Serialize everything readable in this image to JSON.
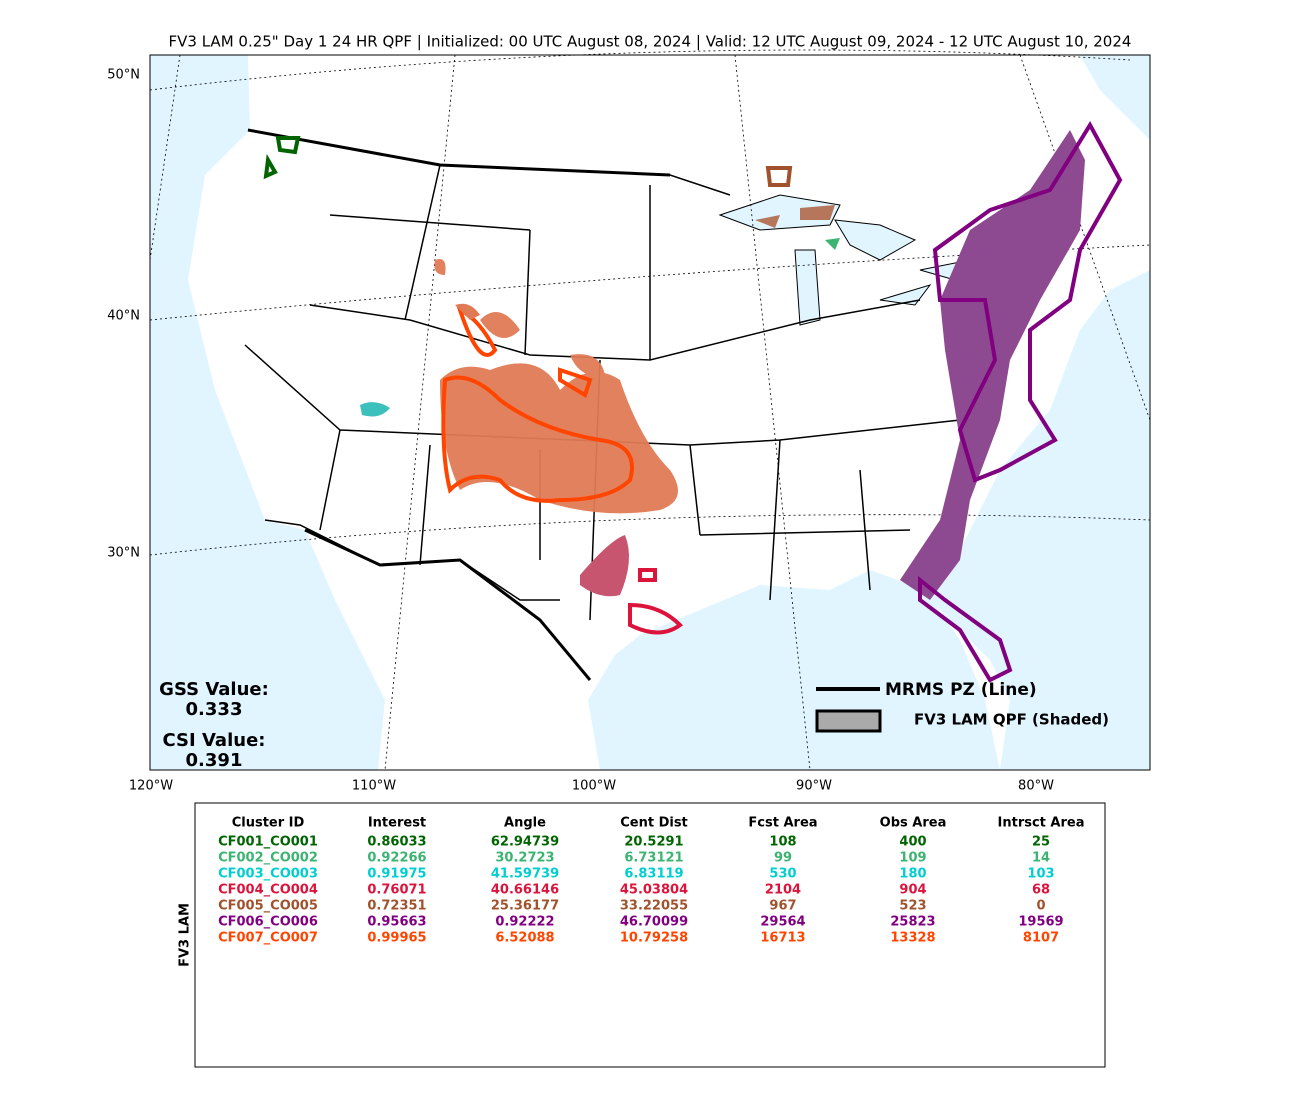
{
  "title": "FV3 LAM 0.25\" Day 1 24 HR QPF | Initialized: 00 UTC August 08, 2024 | Valid: 12 UTC August 09, 2024 - 12 UTC August 10, 2024",
  "map": {
    "lat_labels": [
      "50°N",
      "40°N",
      "30°N"
    ],
    "lon_labels": [
      "120°W",
      "110°W",
      "100°W",
      "90°W",
      "80°W"
    ],
    "stats": {
      "gss_label": "GSS Value:",
      "gss": "0.333",
      "csi_label": "CSI Value:",
      "csi": "0.391"
    },
    "legend": {
      "line": "MRMS PZ (Line)",
      "shaded": "FV3 LAM QPF (Shaded)"
    }
  },
  "table": {
    "side_label": "FV3 LAM",
    "columns": [
      "Cluster ID",
      "Interest",
      "Angle",
      "Cent Dist",
      "Fcst Area",
      "Obs Area",
      "Intrsct Area"
    ],
    "rows": [
      {
        "color": "#006400",
        "cells": [
          "CF001_CO001",
          "0.86033",
          "62.94739",
          "20.5291",
          "108",
          "400",
          "25"
        ]
      },
      {
        "color": "#3cb371",
        "cells": [
          "CF002_CO002",
          "0.92266",
          "30.2723",
          "6.73121",
          "99",
          "109",
          "14"
        ]
      },
      {
        "color": "#00ced1",
        "cells": [
          "CF003_CO003",
          "0.91975",
          "41.59739",
          "6.83119",
          "530",
          "180",
          "103"
        ]
      },
      {
        "color": "#dc143c",
        "cells": [
          "CF004_CO004",
          "0.76071",
          "40.66146",
          "45.03804",
          "2104",
          "904",
          "68"
        ]
      },
      {
        "color": "#a0522d",
        "cells": [
          "CF005_CO005",
          "0.72351",
          "25.36177",
          "33.22055",
          "967",
          "523",
          "0"
        ]
      },
      {
        "color": "#800080",
        "cells": [
          "CF006_CO006",
          "0.95663",
          "0.92222",
          "46.70099",
          "29564",
          "25823",
          "19569"
        ]
      },
      {
        "color": "#ff4500",
        "cells": [
          "CF007_CO007",
          "0.99965",
          "6.52088",
          "10.79258",
          "16713",
          "13328",
          "8107"
        ]
      }
    ]
  }
}
